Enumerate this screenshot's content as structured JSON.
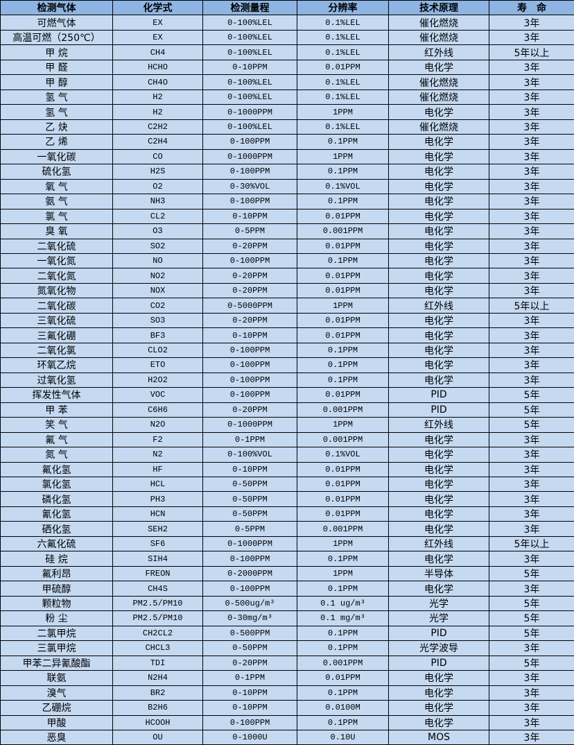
{
  "header": [
    "检测气体",
    "化学式",
    "检测量程",
    "分辨率",
    "技术原理",
    "寿　命"
  ],
  "colors": {
    "header_bg": "#8db4e2",
    "cell_bg": "#c5d9f1",
    "border": "#000000"
  },
  "rows": [
    [
      "可燃气体",
      "EX",
      "0-100%LEL",
      "0.1%LEL",
      "催化燃烧",
      "3年"
    ],
    [
      "高温可燃（250℃）",
      "EX",
      "0-100%LEL",
      "0.1%LEL",
      "催化燃烧",
      "3年"
    ],
    [
      "甲 烷",
      "CH4",
      "0-100%LEL",
      "0.1%LEL",
      "红外线",
      "5年以上"
    ],
    [
      "甲 醛",
      "HCHO",
      "0-10PPM",
      "0.01PPM",
      "电化学",
      "3年"
    ],
    [
      "甲 醇",
      "CH4O",
      "0-100%LEL",
      "0.1%LEL",
      "催化燃烧",
      "3年"
    ],
    [
      "氢 气",
      "H2",
      "0-100%LEL",
      "0.1%LEL",
      "催化燃烧",
      "3年"
    ],
    [
      "氢 气",
      "H2",
      "0-1000PPM",
      "1PPM",
      "电化学",
      "3年"
    ],
    [
      "乙 炔",
      "C2H2",
      "0-100%LEL",
      "0.1%LEL",
      "催化燃烧",
      "3年"
    ],
    [
      "乙 烯",
      "C2H4",
      "0-100PPM",
      "0.1PPM",
      "电化学",
      "3年"
    ],
    [
      "一氧化碳",
      "CO",
      "0-1000PPM",
      "1PPM",
      "电化学",
      "3年"
    ],
    [
      "硫化氢",
      "H2S",
      "0-100PPM",
      "0.1PPM",
      "电化学",
      "3年"
    ],
    [
      "氧 气",
      "O2",
      "0-30%VOL",
      "0.1%VOL",
      "电化学",
      "3年"
    ],
    [
      "氨 气",
      "NH3",
      "0-100PPM",
      "0.1PPM",
      "电化学",
      "3年"
    ],
    [
      "氯 气",
      "CL2",
      "0-10PPM",
      "0.01PPM",
      "电化学",
      "3年"
    ],
    [
      "臭 氧",
      "O3",
      "0-5PPM",
      "0.001PPM",
      "电化学",
      "3年"
    ],
    [
      "二氧化硫",
      "SO2",
      "0-20PPM",
      "0.01PPM",
      "电化学",
      "3年"
    ],
    [
      "一氧化氮",
      "NO",
      "0-100PPM",
      "0.1PPM",
      "电化学",
      "3年"
    ],
    [
      "二氧化氮",
      "NO2",
      "0-20PPM",
      "0.01PPM",
      "电化学",
      "3年"
    ],
    [
      "氮氧化物",
      "NOX",
      "0-20PPM",
      "0.01PPM",
      "电化学",
      "3年"
    ],
    [
      "二氧化碳",
      "CO2",
      "0-5000PPM",
      "1PPM",
      "红外线",
      "5年以上"
    ],
    [
      "三氧化硫",
      "SO3",
      "0-20PPM",
      "0.01PPM",
      "电化学",
      "3年"
    ],
    [
      "三氟化硼",
      "BF3",
      "0-10PPM",
      "0.01PPM",
      "电化学",
      "3年"
    ],
    [
      "二氧化氯",
      "CLO2",
      "0-100PPM",
      "0.1PPM",
      "电化学",
      "3年"
    ],
    [
      "环氧乙烷",
      "ETO",
      "0-100PPM",
      "0.1PPM",
      "电化学",
      "3年"
    ],
    [
      "过氧化氢",
      "H2O2",
      "0-100PPM",
      "0.1PPM",
      "电化学",
      "3年"
    ],
    [
      "挥发性气体",
      "VOC",
      "0-100PPM",
      "0.01PPM",
      "PID",
      "5年"
    ],
    [
      "甲 苯",
      "C6H6",
      "0-20PPM",
      "0.001PPM",
      "PID",
      "5年"
    ],
    [
      "笑 气",
      "N2O",
      "0-1000PPM",
      "1PPM",
      "红外线",
      "5年"
    ],
    [
      "氟 气",
      "F2",
      "0-1PPM",
      "0.001PPM",
      "电化学",
      "3年"
    ],
    [
      "氮 气",
      "N2",
      "0-100%VOL",
      "0.1%VOL",
      "电化学",
      "3年"
    ],
    [
      "氟化氢",
      "HF",
      "0-10PPM",
      "0.01PPM",
      "电化学",
      "3年"
    ],
    [
      "氯化氢",
      "HCL",
      "0-50PPM",
      "0.01PPM",
      "电化学",
      "3年"
    ],
    [
      "磷化氢",
      "PH3",
      "0-50PPM",
      "0.01PPM",
      "电化学",
      "3年"
    ],
    [
      "氰化氢",
      "HCN",
      "0-50PPM",
      "0.01PPM",
      "电化学",
      "3年"
    ],
    [
      "硒化氢",
      "SEH2",
      "0-5PPM",
      "0.001PPM",
      "电化学",
      "3年"
    ],
    [
      "六氟化硫",
      "SF6",
      "0-1000PPM",
      "1PPM",
      "红外线",
      "5年以上"
    ],
    [
      "硅 烷",
      "SIH4",
      "0-100PPM",
      "0.1PPM",
      "电化学",
      "3年"
    ],
    [
      "氟利昂",
      "FREON",
      "0-2000PPM",
      "1PPM",
      "半导体",
      "5年"
    ],
    [
      "甲硫醇",
      "CH4S",
      "0-100PPM",
      "0.1PPM",
      "电化学",
      "3年"
    ],
    [
      "颗粒物",
      "PM2.5/PM10",
      "0-500ug/m³",
      "0.1 ug/m³",
      "光学",
      "5年"
    ],
    [
      "粉 尘",
      "PM2.5/PM10",
      "0-30mg/m³",
      "0.1 mg/m³",
      "光学",
      "5年"
    ],
    [
      "二氯甲烷",
      "CH2CL2",
      "0-500PPM",
      "0.1PPM",
      "PID",
      "5年"
    ],
    [
      "三氯甲烷",
      "CHCL3",
      "0-50PPM",
      "0.1PPM",
      "光学波导",
      "3年"
    ],
    [
      "甲苯二异氰酸酯",
      "TDI",
      "0-20PPM",
      "0.001PPM",
      "PID",
      "5年"
    ],
    [
      "联氨",
      "N2H4",
      "0-1PPM",
      "0.01PPM",
      "电化学",
      "3年"
    ],
    [
      "溴气",
      "BR2",
      "0-10PPM",
      "0.1PPM",
      "电化学",
      "3年"
    ],
    [
      "乙硼烷",
      "B2H6",
      "0-10PPM",
      "0.0100M",
      "电化学",
      "3年"
    ],
    [
      "甲酸",
      "HCOOH",
      "0-100PPM",
      "0.1PPM",
      "电化学",
      "3年"
    ],
    [
      "恶臭",
      "OU",
      "0-1000U",
      "0.10U",
      "MOS",
      "3年"
    ]
  ]
}
